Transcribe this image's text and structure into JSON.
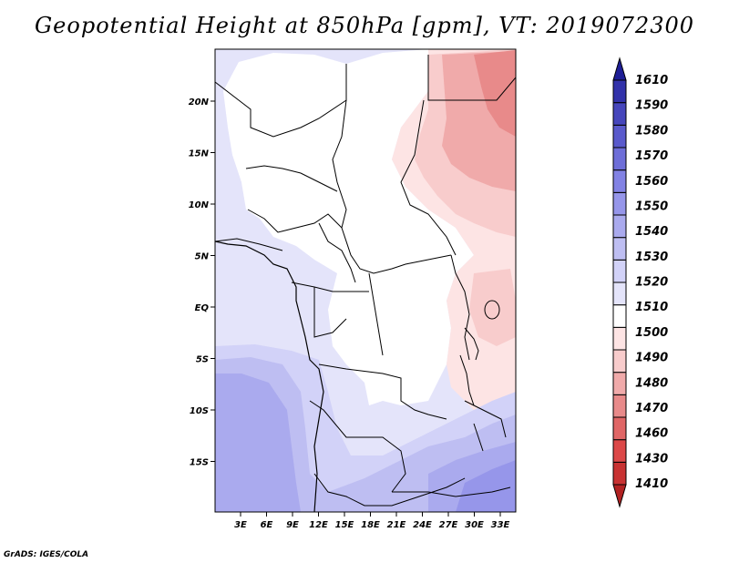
{
  "title": "Geopotential Height at 850hPa [gpm], VT: 2019072300",
  "credit": "GrADS: IGES/COLA",
  "map": {
    "lon_labels": [
      "3E",
      "6E",
      "9E",
      "12E",
      "15E",
      "18E",
      "21E",
      "24E",
      "27E",
      "30E",
      "33E"
    ],
    "lat_labels": [
      "20N",
      "15N",
      "10N",
      "5N",
      "EQ",
      "5S",
      "10S",
      "15S"
    ]
  },
  "colorbar": {
    "colors": [
      "#b22222",
      "#c83232",
      "#dc4848",
      "#e06666",
      "#e88a8a",
      "#f0aaaa",
      "#f8cccc",
      "#fde4e4",
      "#ffffff",
      "#e4e4fa",
      "#d2d2f8",
      "#bebef2",
      "#aaaaee",
      "#9696ea",
      "#8282e4",
      "#6e6ed8",
      "#5a5acc",
      "#4646bc",
      "#3232aa",
      "#1e1e96"
    ],
    "labels": [
      "1410",
      "1430",
      "1460",
      "1470",
      "1480",
      "1490",
      "1500",
      "1510",
      "1520",
      "1530",
      "1540",
      "1550",
      "1560",
      "1570",
      "1580",
      "1590",
      "1610"
    ]
  }
}
